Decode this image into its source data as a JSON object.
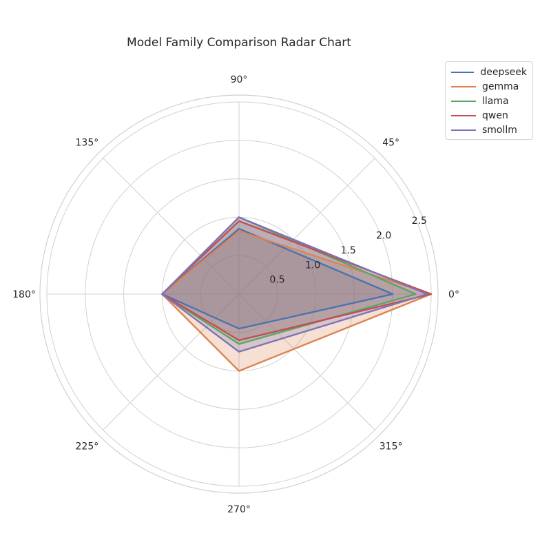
{
  "chart_data": {
    "type": "radar",
    "title": "Model Family Comparison Radar Chart",
    "angles_deg": [
      0,
      90,
      180,
      270
    ],
    "angle_tick_labels": [
      "0°",
      "45°",
      "90°",
      "135°",
      "180°",
      "225°",
      "270°",
      "315°"
    ],
    "radial_ticks": [
      0.5,
      1.0,
      1.5,
      2.0,
      2.5
    ],
    "radial_tick_labels": [
      "0.5",
      "1.0",
      "1.5",
      "2.0",
      "2.5"
    ],
    "rlim": [
      0,
      2.5
    ],
    "grid": true,
    "fill_alpha": 0.25,
    "legend_position": "upper-right-outside",
    "series": [
      {
        "name": "deepseek",
        "color": "#4c72b0",
        "values": [
          2.0,
          0.85,
          1.0,
          0.45
        ]
      },
      {
        "name": "gemma",
        "color": "#dd8452",
        "values": [
          2.5,
          0.82,
          1.0,
          1.0
        ]
      },
      {
        "name": "llama",
        "color": "#55a868",
        "values": [
          2.3,
          1.0,
          1.0,
          0.65
        ]
      },
      {
        "name": "qwen",
        "color": "#c44e52",
        "values": [
          2.5,
          0.95,
          1.0,
          0.6
        ]
      },
      {
        "name": "smollm",
        "color": "#8172b3",
        "values": [
          2.45,
          1.0,
          1.0,
          0.75
        ]
      }
    ]
  }
}
